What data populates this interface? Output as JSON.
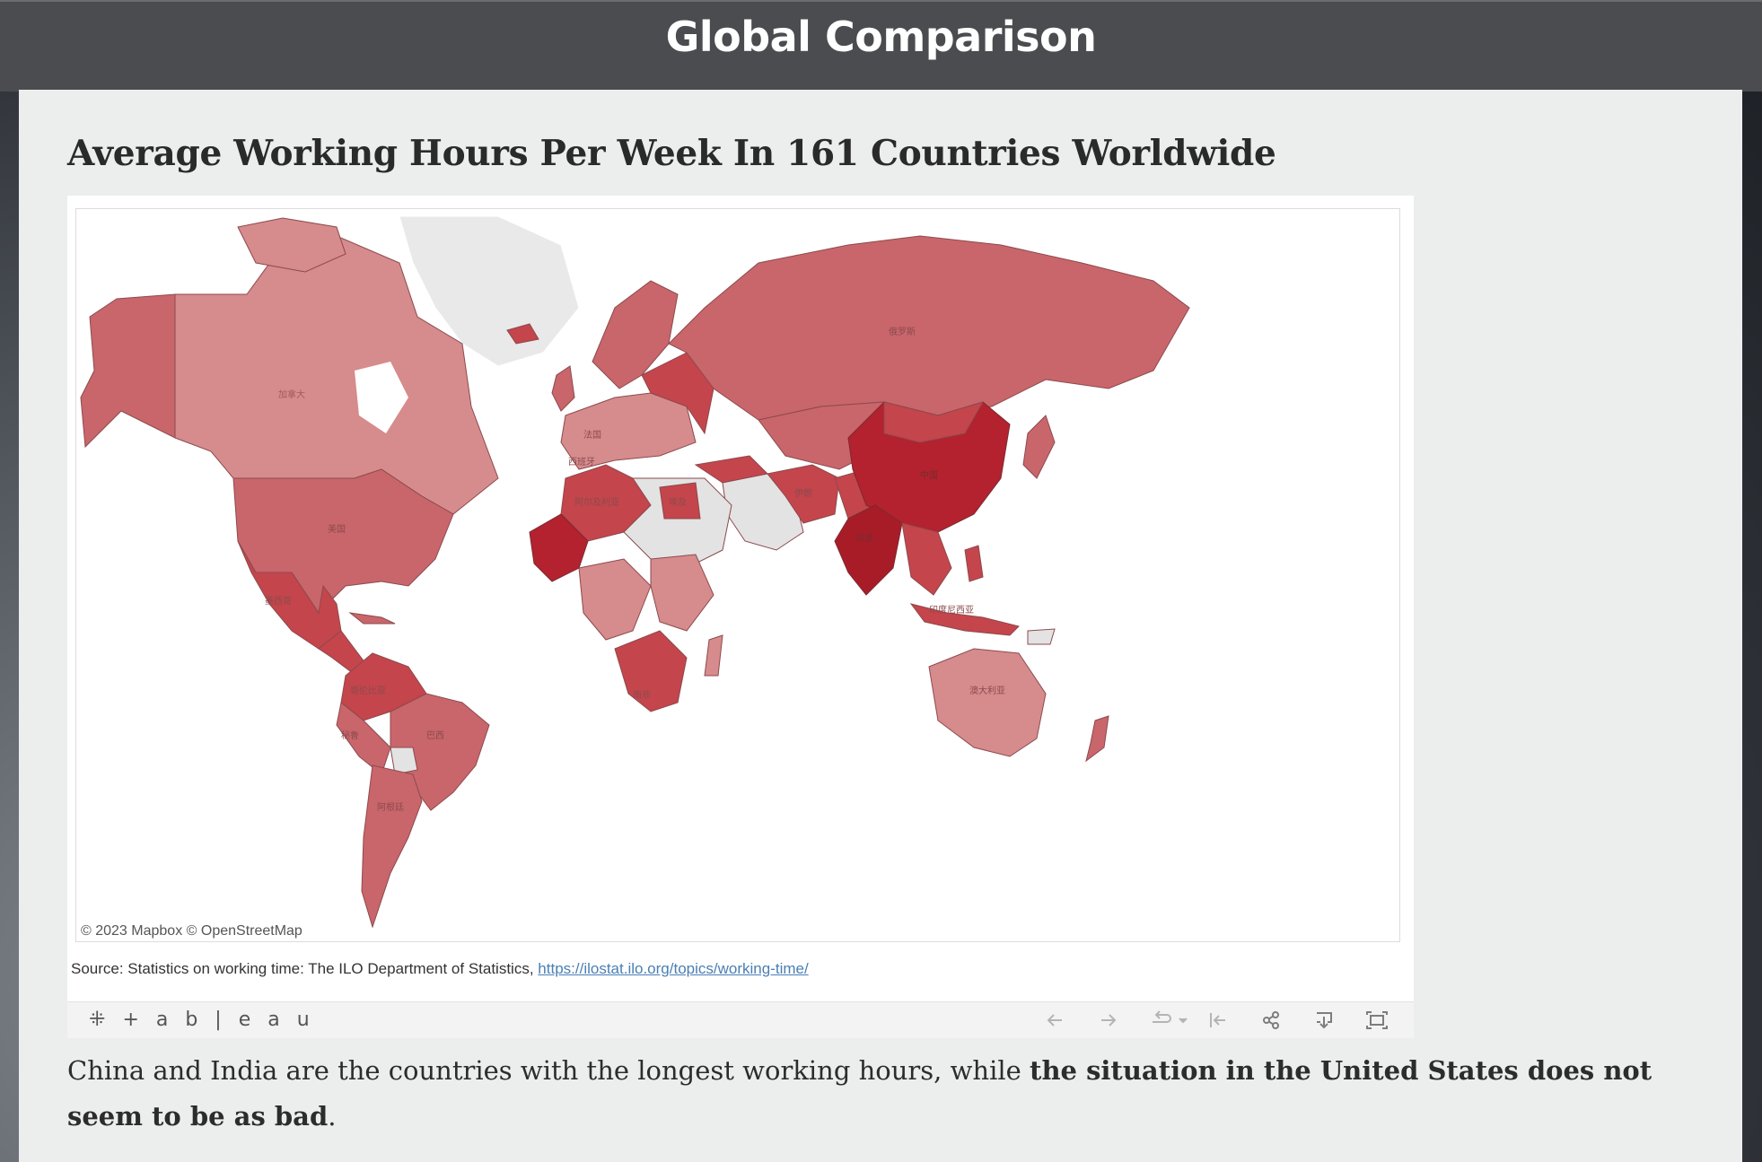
{
  "header": {
    "title": "Global Comparison"
  },
  "article": {
    "heading": "Average Working Hours Per Week In 161 Countries Worldwide",
    "caption_part1": "China and India are the countries with the longest working hours, while ",
    "caption_bold": "the situation in the United States does not seem to be as bad",
    "caption_end": "."
  },
  "viz": {
    "attribution": "© 2023 Mapbox © OpenStreetMap",
    "source_prefix": "Source: Statistics on working time: The ILO Department of Statistics, ",
    "source_link": "https://ilostat.ilo.org/topics/working-time/",
    "map_labels": {
      "canada": "加拿大",
      "usa": "美国",
      "mexico": "墨西哥",
      "colombia": "哥伦比亚",
      "peru": "秘鲁",
      "brazil": "巴西",
      "argentina": "阿根廷",
      "russia": "俄罗斯",
      "china": "中国",
      "india": "印度",
      "iran": "伊朗",
      "algeria": "阿尔及利亚",
      "egypt": "埃及",
      "south_africa": "南非",
      "australia": "澳大利亚",
      "indonesia": "印度尼西亚",
      "france": "法国",
      "spain": "西班牙"
    },
    "legend_colors": {
      "highest": "#b3222e",
      "high": "#c4454b",
      "medium": "#c9666b",
      "low": "#d68b8c",
      "no_data": "#e3e3e3"
    }
  },
  "toolbar": {
    "logo": "+ a b | e a u",
    "icons": [
      "undo-icon",
      "redo-icon",
      "revert-icon",
      "revert-dropdown-icon",
      "reset-icon",
      "share-icon",
      "download-icon",
      "fullscreen-icon"
    ]
  }
}
